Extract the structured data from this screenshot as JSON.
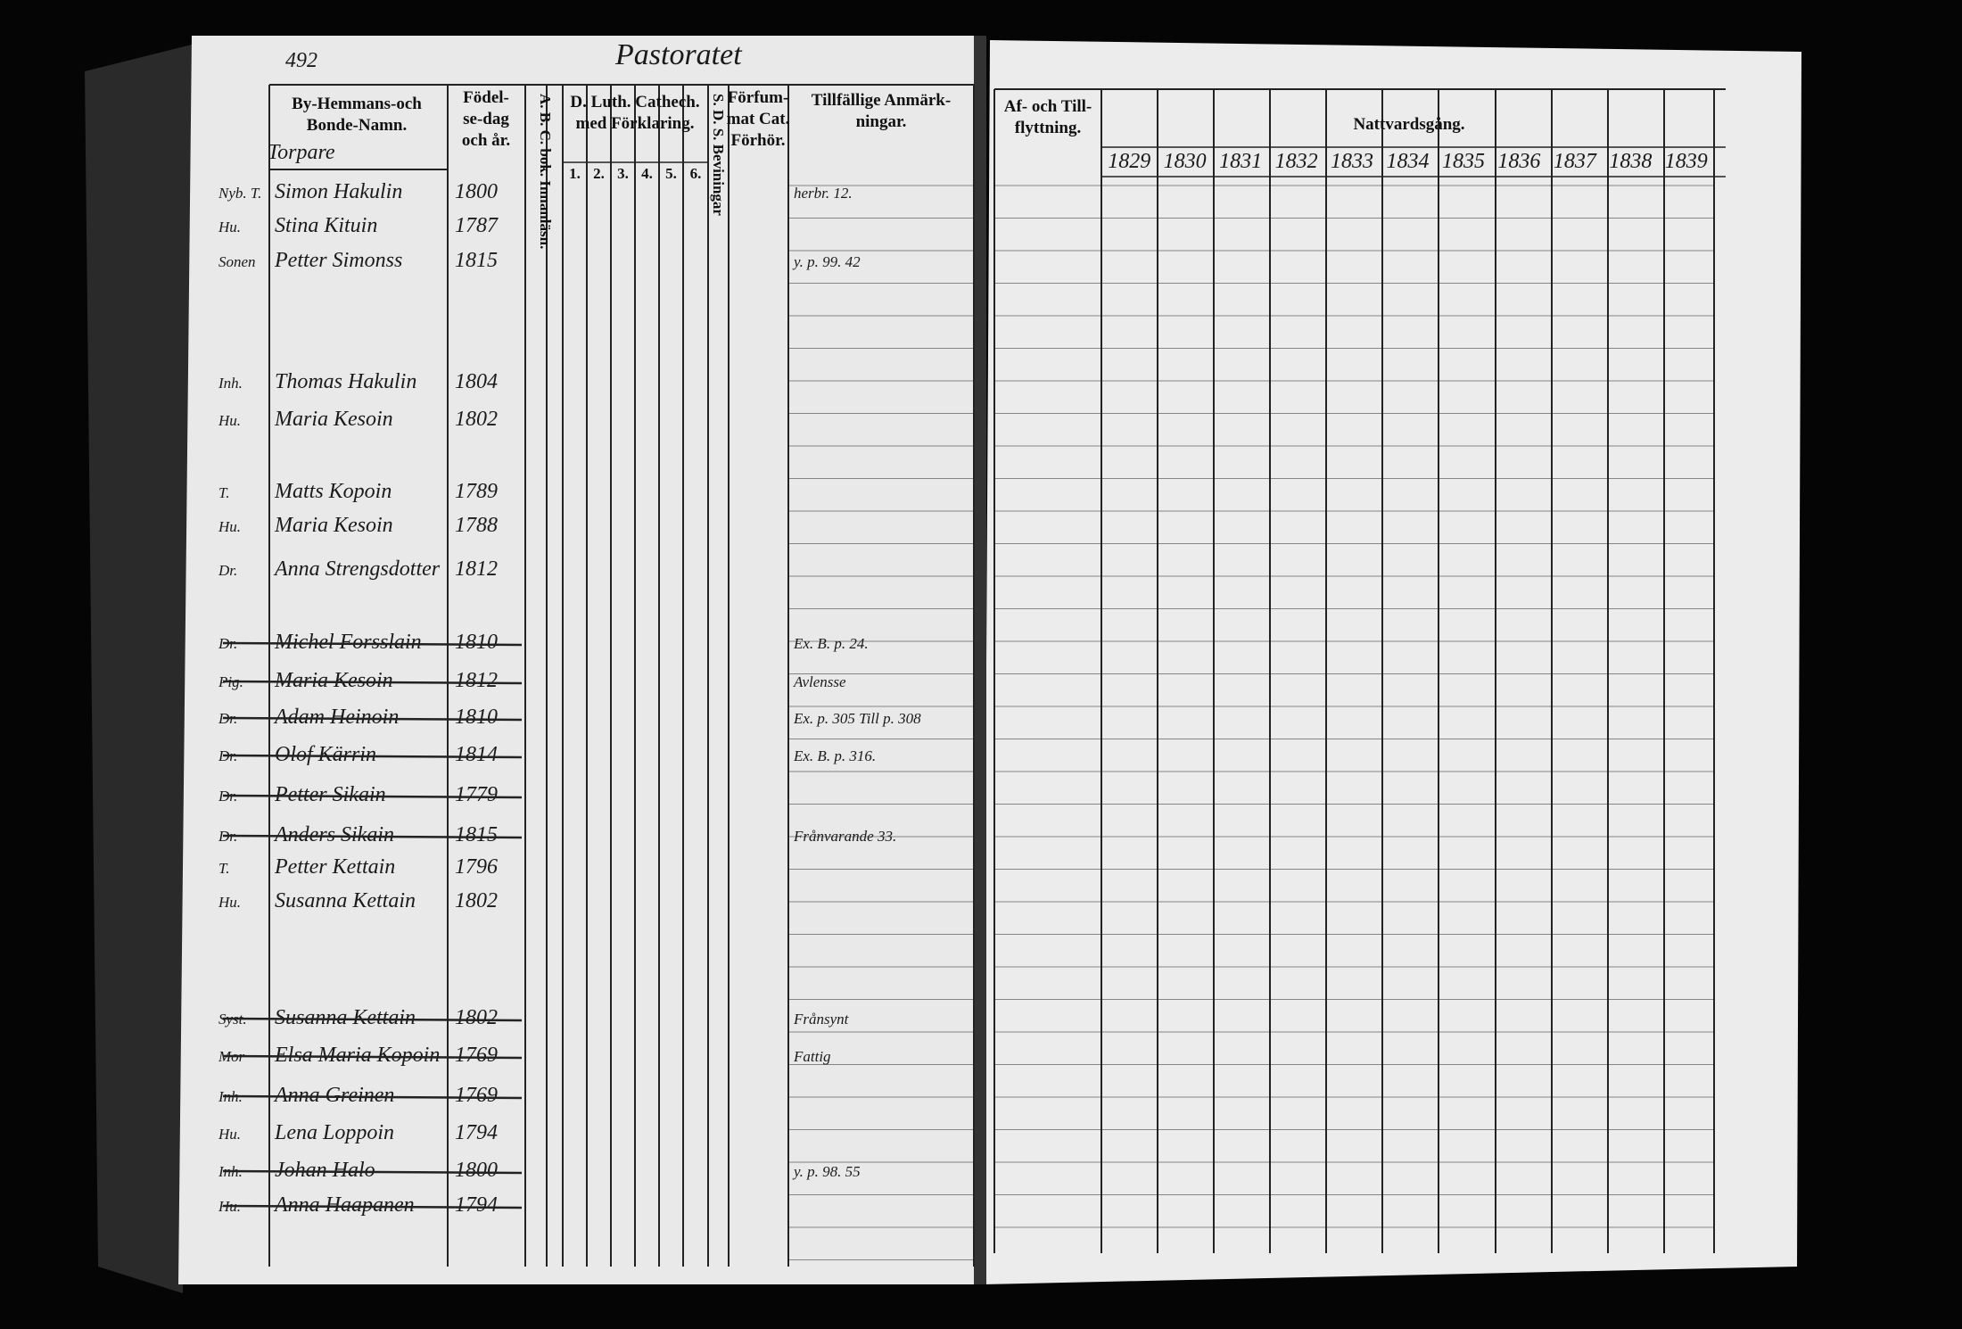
{
  "header": {
    "page_number": "492",
    "title": "Pastoratet",
    "section": "Torpare"
  },
  "left_columns": {
    "name": [
      "By-Hemmans-och",
      "Bonde-Namn."
    ],
    "born": [
      "Födel-",
      "se-dag",
      "och år."
    ],
    "abc": "A. B. C. bok. Innanläsn.",
    "catech": [
      "D. Luth. Cathech.",
      "med Förklaring."
    ],
    "catech_numbers": [
      "1.",
      "2.",
      "3.",
      "4.",
      "5.",
      "6."
    ],
    "sds": "S. D. S. Beviningar",
    "forhor": [
      "Förfum-",
      "mat Cat.",
      "Förhör."
    ],
    "remarks": [
      "Tillfällige Anmärk-",
      "ningar."
    ]
  },
  "right_columns": {
    "moving": [
      "Af- och Till-",
      "flyttning."
    ],
    "communion": "Nattvardsgång.",
    "years": [
      "1829",
      "1830",
      "1831",
      "1832",
      "1833",
      "1834",
      "1835",
      "1836",
      "1837",
      "1838",
      "1839"
    ]
  },
  "rows": [
    {
      "prefix": "Nyb. T.",
      "name": "Simon Hakulin",
      "born": "1800",
      "remark": "herbr. 12.",
      "struck": false
    },
    {
      "prefix": "Hu.",
      "name": "Stina Kituin",
      "born": "1787",
      "struck": false
    },
    {
      "prefix": "Sonen",
      "name": "Petter Simonss",
      "born": "1815",
      "remark": "y. p. 99. 42",
      "struck": false
    },
    {
      "prefix": "Inh.",
      "name": "Thomas Hakulin",
      "born": "1804",
      "struck": false
    },
    {
      "prefix": "Hu.",
      "name": "Maria Kesoin",
      "born": "1802",
      "struck": false
    },
    {
      "prefix": "T.",
      "name": "Matts Kopoin",
      "born": "1789",
      "struck": false
    },
    {
      "prefix": "Hu.",
      "name": "Maria Kesoin",
      "born": "1788",
      "struck": false
    },
    {
      "prefix": "Dr.",
      "name": "Anna Strengsdotter",
      "born": "1812",
      "struck": false
    },
    {
      "prefix": "Dr.",
      "name": "Michel Forsslain",
      "born": "1810",
      "remark": "Ex. B. p. 24.",
      "struck": true
    },
    {
      "prefix": "Pig.",
      "name": "Maria Kesoin",
      "born": "1812",
      "remark": "Avlensse",
      "struck": true
    },
    {
      "prefix": "Dr.",
      "name": "Adam Heinoin",
      "born": "1810",
      "remark": "Ex. p. 305 Till p. 308",
      "struck": true
    },
    {
      "prefix": "Dr.",
      "name": "Olof Kärrin",
      "born": "1814",
      "remark": "Ex. B. p. 316.",
      "struck": true
    },
    {
      "prefix": "Dr.",
      "name": "Petter Sikain",
      "born": "1779",
      "struck": true
    },
    {
      "prefix": "Dr.",
      "name": "Anders Sikain",
      "born": "1815",
      "remark": "Frånvarande 33.",
      "struck": true
    },
    {
      "prefix": "T.",
      "name": "Petter Kettain",
      "born": "1796",
      "struck": false
    },
    {
      "prefix": "Hu.",
      "name": "Susanna Kettain",
      "born": "1802",
      "struck": false
    },
    {
      "prefix": "Syst.",
      "name": "Susanna Kettain",
      "born": "1802",
      "remark": "Frånsynt",
      "struck": true
    },
    {
      "prefix": "Mor",
      "name": "Elsa Maria Kopoin",
      "born": "1769",
      "remark": "Fattig",
      "struck": true
    },
    {
      "prefix": "Inh.",
      "name": "Anna Greinen",
      "born": "1769",
      "struck": true
    },
    {
      "prefix": "Hu.",
      "name": "Lena Loppoin",
      "born": "1794",
      "struck": false
    },
    {
      "prefix": "Inh.",
      "name": "Johan Halo",
      "born": "1800",
      "remark": "y. p. 98. 55",
      "struck": true
    },
    {
      "prefix": "Hu.",
      "name": "Anna Haapanen",
      "born": "1794",
      "struck": true
    }
  ]
}
